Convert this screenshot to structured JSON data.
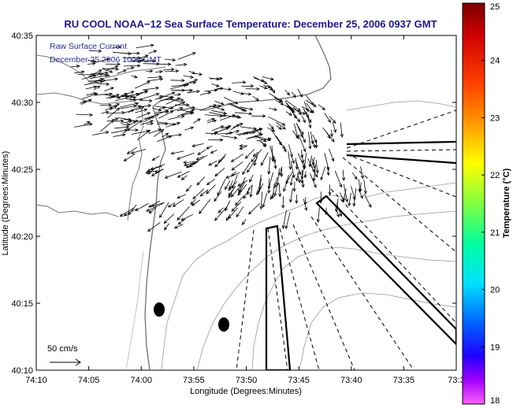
{
  "title": "RU COOL  NOAA−12  Sea Surface Temperature:  December 25, 2006 0937 GMT",
  "overlay": {
    "line1": "Raw Surface Current",
    "line2": "December 25 2006 1000 GMT"
  },
  "axes": {
    "xlabel": "Longitude (Degrees:Minutes)",
    "ylabel": "Latitude (Degrees:Minutes)",
    "xticks": [
      "74:10",
      "74:05",
      "74:00",
      "73:55",
      "73:50",
      "73:45",
      "73:40",
      "73:35",
      "73:3"
    ],
    "yticks": [
      "40:35",
      "40:30",
      "40:25",
      "40:20",
      "40:15",
      "40:10"
    ]
  },
  "scale_label": "50 cm/s",
  "colorbar": {
    "label": "Temperature (°C)",
    "ticks": [
      "25",
      "24",
      "23",
      "22",
      "21",
      "20",
      "19",
      "18"
    ],
    "colors": [
      "#7a0000",
      "#ff0000",
      "#ff8000",
      "#ffff00",
      "#00ff80",
      "#00ffff",
      "#0080ff",
      "#0000ff",
      "#ff40ff"
    ]
  }
}
